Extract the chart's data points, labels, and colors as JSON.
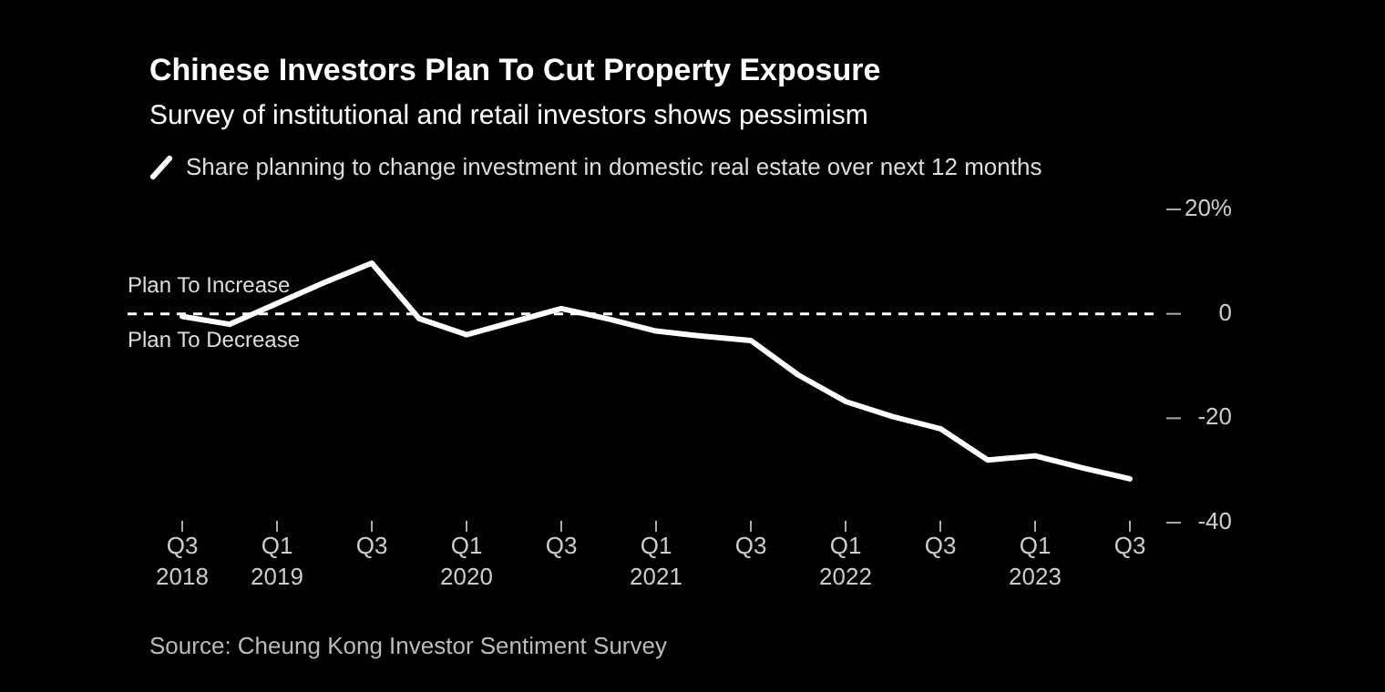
{
  "chart_data": {
    "type": "line",
    "title": "Chinese Investors Plan To Cut Property Exposure",
    "subtitle": "Survey of institutional and retail investors shows pessimism",
    "categories": [
      "Q3 2018",
      null,
      "Q1 2019",
      null,
      "Q3",
      null,
      "Q1 2020",
      null,
      "Q3",
      null,
      "Q1 2021",
      null,
      "Q3",
      null,
      "Q1 2022",
      null,
      "Q3",
      null,
      "Q1 2023",
      null,
      "Q3"
    ],
    "series": [
      {
        "name": "Share planning to change investment in domestic real estate over next 12 months",
        "color": "#ffffff",
        "values": [
          -0.5,
          -2,
          2,
          6,
          9.7,
          -0.9,
          -4,
          -1.5,
          1,
          -1,
          -3.3,
          -4.3,
          -5.1,
          -11.7,
          -16.8,
          -19.7,
          -22,
          -28,
          -27.2,
          -29.5,
          -31.6
        ]
      }
    ],
    "ylim": [
      -40,
      20
    ],
    "yticks": [
      {
        "value": 20,
        "label": "20%"
      },
      0,
      -20,
      -40
    ],
    "ref_lines": [
      {
        "axis": "y",
        "value": 0,
        "label": null,
        "color": "#ffffff",
        "line_style": "dashed"
      }
    ],
    "annotations": [
      "Plan To Increase",
      "Plan To Decrease",
      "Source: Cheung Kong Investor Sentiment Survey"
    ],
    "legend": "top left",
    "grid": false,
    "marker": "none",
    "line_style": "solid"
  }
}
